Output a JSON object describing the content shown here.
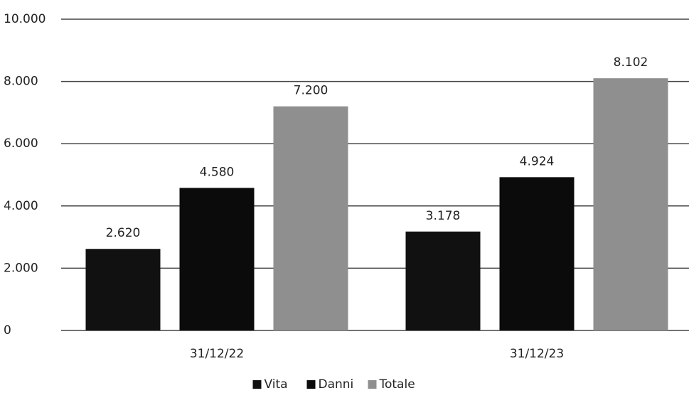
{
  "chart_data": {
    "type": "bar",
    "categories": [
      "31/12/22",
      "31/12/23"
    ],
    "series": [
      {
        "name": "Vita",
        "color": "#111111",
        "values": [
          2620,
          3178
        ],
        "value_labels": [
          "2.620",
          "3.178"
        ]
      },
      {
        "name": "Danni",
        "color": "#0b0b0b",
        "values": [
          4580,
          4924
        ],
        "value_labels": [
          "4.580",
          "4.924"
        ]
      },
      {
        "name": "Totale",
        "color": "#8f8f8f",
        "values": [
          7200,
          8102
        ],
        "value_labels": [
          "7.200",
          "8.102"
        ]
      }
    ],
    "ylim": [
      0,
      10000
    ],
    "yticks": [
      0,
      {
        "value": 2000,
        "label": "2.000"
      },
      {
        "value": 4000,
        "label": "4.000"
      },
      {
        "value": 6000,
        "label": "6.000"
      },
      {
        "value": 8000,
        "label": "8.000"
      },
      {
        "value": 10000,
        "label": "10.000"
      }
    ],
    "grid": true,
    "legend": "bottom"
  }
}
